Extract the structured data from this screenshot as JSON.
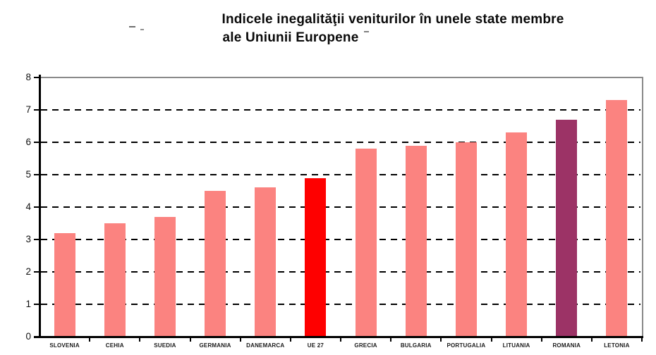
{
  "title": {
    "line1": "Indicele inegalităţii veniturilor în unele state membre",
    "line2": "ale Uniunii Europene"
  },
  "chart_data": {
    "type": "bar",
    "title": "Indicele inegalităţii veniturilor în unele state membre ale Uniunii Europene",
    "categories": [
      "SLOVENIA",
      "CEHIA",
      "SUEDIA",
      "GERMANIA",
      "DANEMARCA",
      "UE 27",
      "GRECIA",
      "BULGARIA",
      "PORTUGALIA",
      "LITUANIA",
      "ROMANIA",
      "LETONIA"
    ],
    "values": [
      3.2,
      3.5,
      3.7,
      4.5,
      4.6,
      4.9,
      5.8,
      5.9,
      6.0,
      6.3,
      6.7,
      7.3
    ],
    "bar_colors": [
      "#FB8380",
      "#FB8380",
      "#FB8380",
      "#FB8380",
      "#FB8380",
      "#FE0000",
      "#FB8380",
      "#FB8380",
      "#FB8380",
      "#FB8380",
      "#9C3366",
      "#FB8380"
    ],
    "highlights": [
      {
        "category": "UE 27",
        "color": "#FE0000"
      },
      {
        "category": "ROMANIA",
        "color": "#9C3366"
      }
    ],
    "xlabel": "",
    "ylabel": "",
    "ylim": [
      0,
      8
    ],
    "yticks": [
      0,
      1,
      2,
      3,
      4,
      5,
      6,
      7,
      8
    ],
    "grid": "horizontal dashed black lines at integer values 1-7, solid gray frame line at 8",
    "legend_position": "none"
  },
  "colors": {
    "bar_default": "#FB8380",
    "bar_eu_highlight": "#FE0000",
    "bar_romania_highlight": "#9C3366",
    "gridline": "#000000",
    "frame": "#8A8A8A",
    "axis": "#000000",
    "background": "#FFFFFF"
  }
}
